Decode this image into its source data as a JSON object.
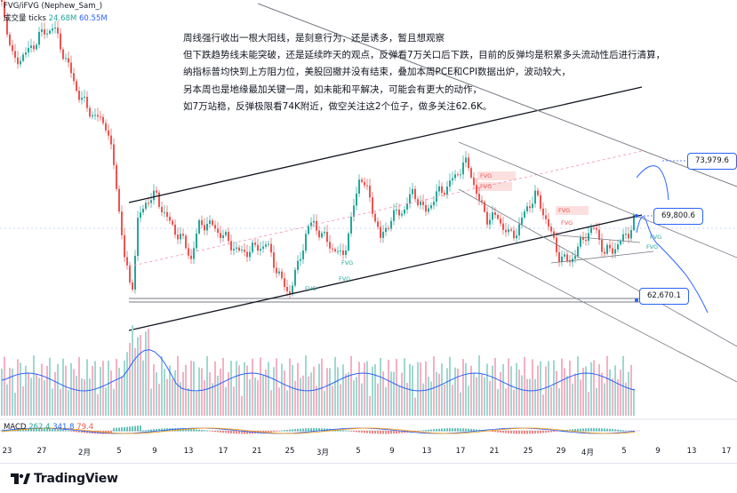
{
  "header": {
    "symbol_line": "FVG/iFVG (Nephew_Sam_)",
    "volume_label": "成交量",
    "volume_suffix": "ticks",
    "volume_value": "24.68M",
    "volume_ma": "60.55M",
    "macd_label": "MACD",
    "macd_values": [
      "262.4",
      "341.8",
      "79.4"
    ]
  },
  "annotation": {
    "lines": [
      "周线强行收出一根大阳线，是刻意行为，还是诱多，暂且想观察",
      "但下跌趋势线未能突破，还是延续昨天的观点，反弹看7万关口后下跌，目前的反弹均是积累多头流动性后进行清算，",
      "纳指标普均快到上方阻力位，美股回撤并没有结束，叠加本周PCE和CPI数据出炉，波动较大，",
      "另本周也是地缘最加关键一周，如未能和平解决，可能会有更大的动作，",
      "如7万站稳，反弹极限看74K附近，做空关注这2个位子，做多关注62.6K。"
    ]
  },
  "price_labels": [
    "73,979.6",
    "69,800.6",
    "62,670.1"
  ],
  "fvg_labels": {
    "red": "FVG",
    "green": "FVG"
  },
  "colors": {
    "up": "#26a69a",
    "down": "#ef5350",
    "trend": "#131722",
    "channel": "#787b86",
    "ma": "#2962ff",
    "vol_up": "#9fd8d2",
    "vol_down": "#f6b0c2",
    "tag_border": "#2962ff"
  },
  "footer": {
    "brand": "TradingView",
    "logo_icon": "tradingview-logo-icon"
  },
  "chart_data": {
    "type": "candlestick",
    "x_axis": {
      "ticks": [
        "23",
        "27",
        "2月",
        "5",
        "9",
        "13",
        "17",
        "21",
        "25",
        "3月",
        "5",
        "9",
        "13",
        "17",
        "21",
        "25",
        "29",
        "4月",
        "5",
        "9",
        "13",
        "17"
      ]
    },
    "price_levels": [
      73979.6,
      69800.6,
      62670.1
    ],
    "indicators": [
      "FVG/iFVG",
      "成交量",
      "MACD"
    ]
  }
}
